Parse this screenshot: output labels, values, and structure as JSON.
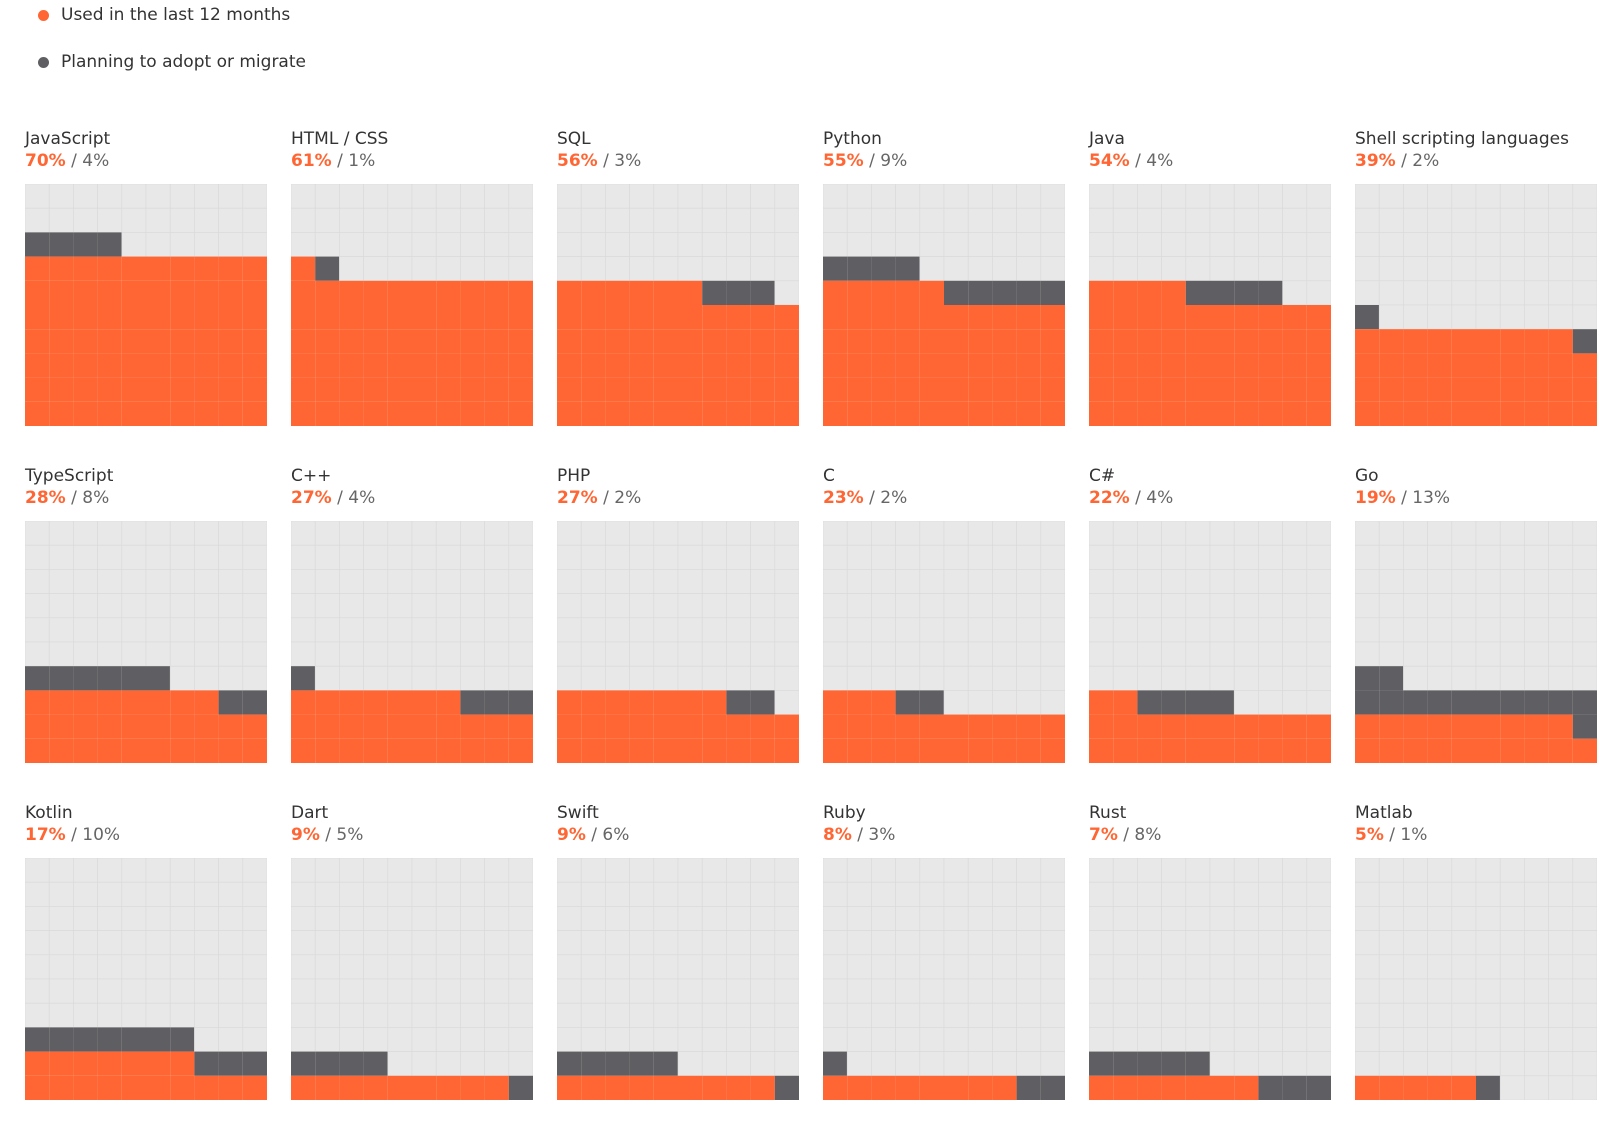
{
  "colors": {
    "used": "#ff6633",
    "planning": "#5f5f63",
    "grid_bg": "#e8e8e8",
    "grid_line": "#d9d9d9"
  },
  "legend": [
    {
      "label": "Used in the last 12 months",
      "color": "#ff6633"
    },
    {
      "label": "Planning to adopt or migrate",
      "color": "#5f5f63"
    }
  ],
  "chart_data": {
    "type": "waffle",
    "grid": {
      "rows": 10,
      "cols": 10
    },
    "series": [
      {
        "name": "Used in the last 12 months"
      },
      {
        "name": "Planning to adopt or migrate"
      }
    ],
    "panels": [
      {
        "label": "JavaScript",
        "used": 70,
        "planning": 4,
        "used_text": "70%",
        "planning_text": "4%"
      },
      {
        "label": "HTML / CSS",
        "used": 61,
        "planning": 1,
        "used_text": "61%",
        "planning_text": "1%"
      },
      {
        "label": "SQL",
        "used": 56,
        "planning": 3,
        "used_text": "56%",
        "planning_text": "3%"
      },
      {
        "label": "Python",
        "used": 55,
        "planning": 9,
        "used_text": "55%",
        "planning_text": "9%"
      },
      {
        "label": "Java",
        "used": 54,
        "planning": 4,
        "used_text": "54%",
        "planning_text": "4%"
      },
      {
        "label": "Shell scripting languages",
        "used": 39,
        "planning": 2,
        "used_text": "39%",
        "planning_text": "2%"
      },
      {
        "label": "TypeScript",
        "used": 28,
        "planning": 8,
        "used_text": "28%",
        "planning_text": "8%"
      },
      {
        "label": "C++",
        "used": 27,
        "planning": 4,
        "used_text": "27%",
        "planning_text": "4%"
      },
      {
        "label": "PHP",
        "used": 27,
        "planning": 2,
        "used_text": "27%",
        "planning_text": "2%"
      },
      {
        "label": "C",
        "used": 23,
        "planning": 2,
        "used_text": "23%",
        "planning_text": "2%"
      },
      {
        "label": "C#",
        "used": 22,
        "planning": 4,
        "used_text": "22%",
        "planning_text": "4%"
      },
      {
        "label": "Go",
        "used": 19,
        "planning": 13,
        "used_text": "19%",
        "planning_text": "13%"
      },
      {
        "label": "Kotlin",
        "used": 17,
        "planning": 10,
        "used_text": "17%",
        "planning_text": "10%"
      },
      {
        "label": "Dart",
        "used": 9,
        "planning": 5,
        "used_text": "9%",
        "planning_text": "5%"
      },
      {
        "label": "Swift",
        "used": 9,
        "planning": 6,
        "used_text": "9%",
        "planning_text": "6%"
      },
      {
        "label": "Ruby",
        "used": 8,
        "planning": 3,
        "used_text": "8%",
        "planning_text": "3%"
      },
      {
        "label": "Rust",
        "used": 7,
        "planning": 8,
        "used_text": "7%",
        "planning_text": "8%"
      },
      {
        "label": "Matlab",
        "used": 5,
        "planning": 1,
        "used_text": "5%",
        "planning_text": "1%"
      }
    ]
  }
}
